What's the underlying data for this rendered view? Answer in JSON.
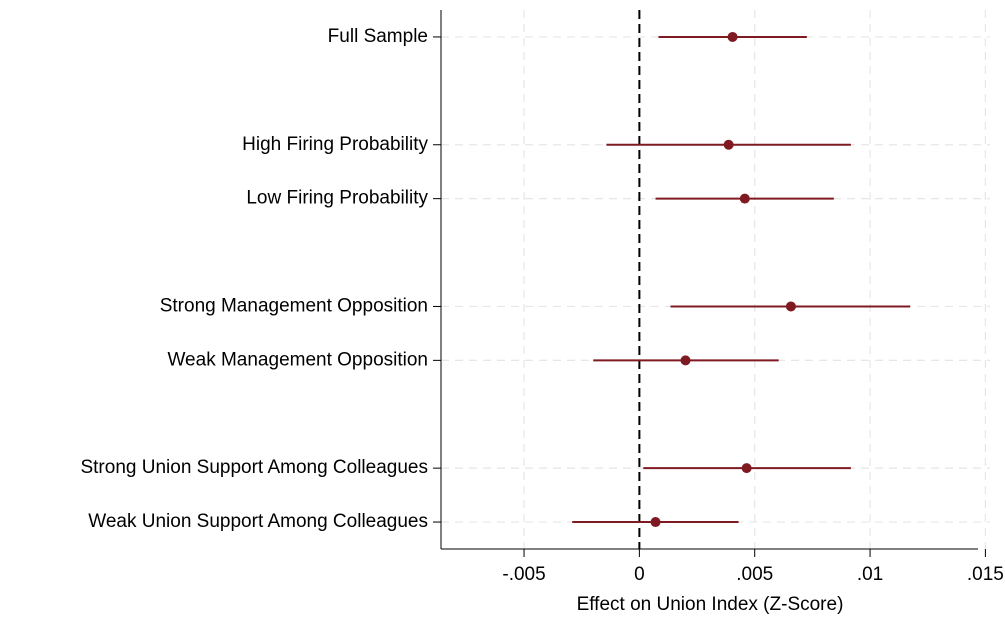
{
  "chart_data": {
    "type": "coefplot",
    "x_label": "Effect on Union Index (Z-Score)",
    "categories": [
      "Full Sample",
      null,
      "High Firing Probability",
      "Low Firing Probability",
      null,
      "Strong Management Opposition",
      "Weak Management Opposition",
      null,
      "Strong Union Support Among Colleagues",
      "Weak Union Support Among Colleagues"
    ],
    "values": [
      0.00404,
      null,
      0.00387,
      0.00457,
      null,
      0.00657,
      0.002,
      null,
      0.00465,
      0.0007
    ],
    "ci_lower": [
      0.00083,
      null,
      -0.00143,
      0.0007,
      null,
      0.00135,
      -0.002,
      null,
      0.00017,
      -0.00291
    ],
    "ci_upper": [
      0.00726,
      null,
      0.00917,
      0.00843,
      null,
      0.01174,
      0.00604,
      null,
      0.00917,
      0.0043
    ],
    "color": "#7f1a22",
    "xlim": [
      -0.0086,
      0.0152
    ],
    "xticks": [
      {
        "value": -0.005,
        "label": "-.005"
      },
      0,
      {
        "value": 0.005,
        "label": ".005"
      },
      {
        "value": 0.01,
        "label": ".01"
      },
      {
        "value": 0.015,
        "label": ".015"
      }
    ],
    "reference_line": 0,
    "grid": true
  }
}
